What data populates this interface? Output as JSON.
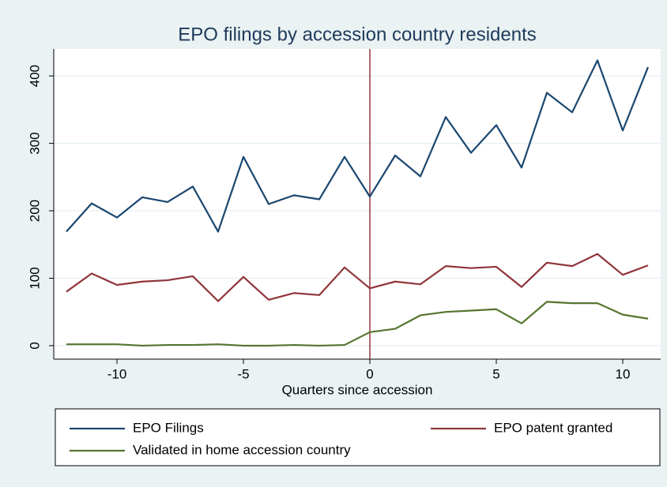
{
  "chart_data": {
    "type": "line",
    "title": "EPO filings by accession country residents",
    "x_label": "Quarters since accession",
    "x": [
      -12,
      -11,
      -10,
      -9,
      -8,
      -7,
      -6,
      -5,
      -4,
      -3,
      -2,
      -1,
      0,
      1,
      2,
      3,
      4,
      5,
      6,
      7,
      8,
      9,
      10,
      11
    ],
    "series": [
      {
        "name": "EPO Filings",
        "color": "#1a476f",
        "values": [
          169,
          211,
          190,
          220,
          213,
          236,
          169,
          280,
          210,
          223,
          217,
          280,
          221,
          282,
          251,
          339,
          286,
          327,
          264,
          375,
          346,
          423,
          319,
          413
        ]
      },
      {
        "name": "EPO patent granted",
        "color": "#90353b",
        "values": [
          80,
          107,
          90,
          95,
          97,
          103,
          66,
          102,
          68,
          78,
          75,
          116,
          85,
          95,
          91,
          118,
          115,
          117,
          87,
          123,
          118,
          136,
          105,
          119
        ]
      },
      {
        "name": "Validated in home accession country",
        "color": "#55752f",
        "values": [
          2,
          2,
          2,
          0,
          1,
          1,
          2,
          0,
          0,
          1,
          0,
          1,
          20,
          25,
          45,
          50,
          52,
          54,
          33,
          65,
          63,
          63,
          46,
          40
        ]
      }
    ],
    "xlim": [
      -12.5,
      11.5
    ],
    "xticks": [
      -10,
      -5,
      0,
      5,
      10
    ],
    "ylim": [
      -20,
      440
    ],
    "yticks": [
      0,
      100,
      200,
      300,
      400
    ],
    "grid": true,
    "reference_line": {
      "x": 0,
      "color": "#90353b"
    },
    "legend": "bottom"
  }
}
